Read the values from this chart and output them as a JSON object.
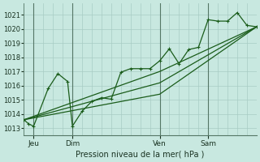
{
  "background_color": "#c8e8e0",
  "grid_color": "#a8ccc4",
  "line_color": "#1a5c1a",
  "xlabel": "Pression niveau de la mer( hPa )",
  "ylim": [
    1012.5,
    1021.8
  ],
  "yticks": [
    1013,
    1014,
    1015,
    1016,
    1017,
    1018,
    1019,
    1020,
    1021
  ],
  "xlim": [
    0,
    96
  ],
  "xtick_positions": [
    4,
    20,
    56,
    76
  ],
  "xtick_labels": [
    "Jeu",
    "Dim",
    "Ven",
    "Sam"
  ],
  "vline_positions": [
    4,
    20,
    56,
    76
  ],
  "series_detailed": {
    "x": [
      0,
      2,
      4,
      10,
      14,
      18,
      20,
      24,
      28,
      32,
      36,
      40,
      44,
      48,
      52,
      56,
      60,
      64,
      68,
      72,
      76,
      80,
      84,
      88,
      92,
      96
    ],
    "y": [
      1013.6,
      1013.3,
      1013.15,
      1015.8,
      1016.85,
      1016.3,
      1013.15,
      1014.2,
      1014.9,
      1015.15,
      1015.05,
      1016.95,
      1017.2,
      1017.2,
      1017.2,
      1017.75,
      1018.6,
      1017.55,
      1018.55,
      1018.7,
      1020.65,
      1020.55,
      1020.55,
      1021.15,
      1020.25,
      1020.15
    ]
  },
  "series_smooth1": {
    "x": [
      0,
      56,
      96
    ],
    "y": [
      1013.6,
      1017.0,
      1020.15
    ]
  },
  "series_smooth2": {
    "x": [
      0,
      56,
      96
    ],
    "y": [
      1013.6,
      1015.4,
      1020.15
    ]
  },
  "series_smooth3": {
    "x": [
      0,
      56,
      96
    ],
    "y": [
      1013.6,
      1016.2,
      1020.15
    ]
  }
}
